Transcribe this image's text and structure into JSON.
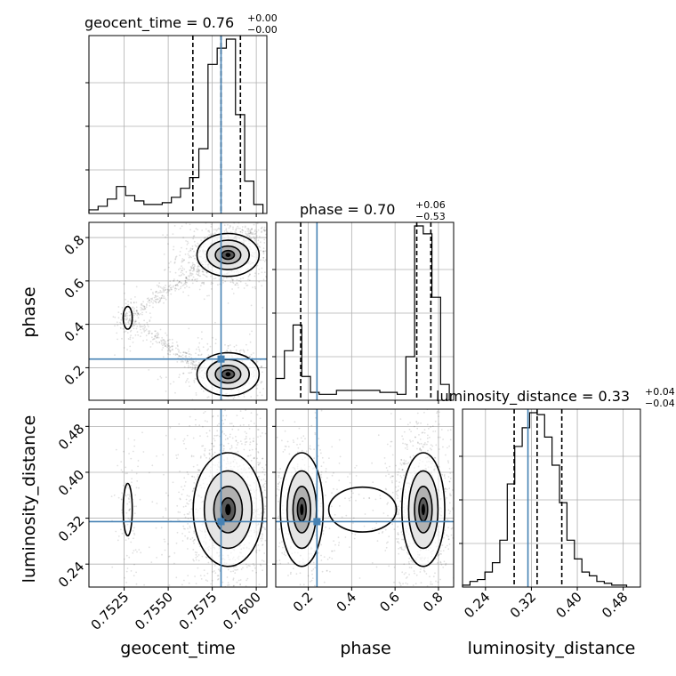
{
  "chart_data": {
    "type": "corner",
    "parameters": [
      "geocent_time",
      "phase",
      "luminosity_distance"
    ],
    "truth": {
      "geocent_time": 0.758,
      "phase": 0.24,
      "luminosity_distance": 0.314
    },
    "truth_color": "#4682b4",
    "grid": true,
    "ranges": {
      "geocent_time": [
        0.7505,
        0.7606
      ],
      "phase": [
        0.05,
        0.87
      ],
      "luminosity_distance": [
        0.2,
        0.51
      ]
    },
    "ticks": {
      "geocent_time": [
        "0.7525",
        "0.7550",
        "0.7575",
        "0.7600"
      ],
      "phase": [
        "0.2",
        "0.4",
        "0.6",
        "0.8"
      ],
      "luminosity_distance": [
        "0.24",
        "0.32",
        "0.40",
        "0.48"
      ]
    },
    "titles": {
      "geocent_time": {
        "name": "geocent_time",
        "median": "0.76",
        "plus": "+0.00",
        "minus": "−0.00"
      },
      "phase": {
        "name": "phase",
        "median": "0.70",
        "plus": "+0.06",
        "minus": "−0.53"
      },
      "luminosity_distance": {
        "name": "luminosity_distance",
        "median": "0.33",
        "plus": "+0.04",
        "minus": "−0.04"
      }
    },
    "quantiles": {
      "geocent_time": [
        0.7564,
        0.758,
        0.7591
      ],
      "phase": [
        0.165,
        0.7,
        0.765
      ],
      "luminosity_distance": [
        0.29,
        0.33,
        0.373
      ]
    },
    "histograms": {
      "geocent_time": {
        "edges": [
          0.7505,
          0.75102,
          0.75154,
          0.75206,
          0.75258,
          0.7531,
          0.75362,
          0.75414,
          0.75466,
          0.75518,
          0.7557,
          0.75622,
          0.75674,
          0.75726,
          0.75778,
          0.7583,
          0.75882,
          0.75934,
          0.75986,
          0.76038
        ],
        "counts": [
          2,
          4,
          8,
          15,
          10,
          7,
          5,
          5,
          6,
          9,
          14,
          20,
          36,
          83,
          92,
          97,
          55,
          18,
          5
        ]
      },
      "phase": {
        "edges": [
          0.05,
          0.09,
          0.13,
          0.17,
          0.21,
          0.25,
          0.29,
          0.33,
          0.37,
          0.41,
          0.45,
          0.49,
          0.53,
          0.57,
          0.61,
          0.65,
          0.69,
          0.73,
          0.77,
          0.81,
          0.85
        ],
        "counts": [
          11,
          25,
          38,
          12,
          4,
          3,
          3,
          5,
          5,
          5,
          5,
          5,
          4,
          4,
          3,
          22,
          88,
          84,
          52,
          8
        ]
      },
      "luminosity_distance": {
        "edges": [
          0.2,
          0.213,
          0.226,
          0.239,
          0.252,
          0.265,
          0.278,
          0.291,
          0.304,
          0.317,
          0.33,
          0.343,
          0.356,
          0.369,
          0.382,
          0.395,
          0.408,
          0.421,
          0.434,
          0.447,
          0.46,
          0.473,
          0.486
        ],
        "counts": [
          1,
          3,
          4,
          8,
          13,
          25,
          55,
          75,
          85,
          93,
          92,
          80,
          65,
          45,
          25,
          15,
          8,
          6,
          3,
          2,
          1,
          1
        ]
      }
    },
    "modes": {
      "geocent_time_vs_phase": [
        {
          "x": 0.7584,
          "y": 0.72,
          "sx": 0.0008,
          "sy": 0.045,
          "w": 0.55
        },
        {
          "x": 0.7584,
          "y": 0.17,
          "sx": 0.0008,
          "sy": 0.045,
          "w": 0.25
        },
        {
          "x": 0.7527,
          "y": 0.43,
          "sx": 0.0002,
          "sy": 0.04,
          "w": 0.05
        }
      ],
      "geocent_time_vs_luminosity_distance": [
        {
          "x": 0.7584,
          "y": 0.335,
          "sx": 0.0009,
          "sy": 0.045,
          "w": 0.92
        },
        {
          "x": 0.7527,
          "y": 0.335,
          "sx": 0.0002,
          "sy": 0.035,
          "w": 0.08
        }
      ],
      "phase_vs_luminosity_distance": [
        {
          "x": 0.73,
          "y": 0.335,
          "sx": 0.045,
          "sy": 0.045,
          "w": 0.62
        },
        {
          "x": 0.17,
          "y": 0.335,
          "sx": 0.045,
          "sy": 0.045,
          "w": 0.3
        },
        {
          "x": 0.45,
          "y": 0.335,
          "sx": 0.12,
          "sy": 0.03,
          "w": 0.08
        }
      ]
    }
  }
}
